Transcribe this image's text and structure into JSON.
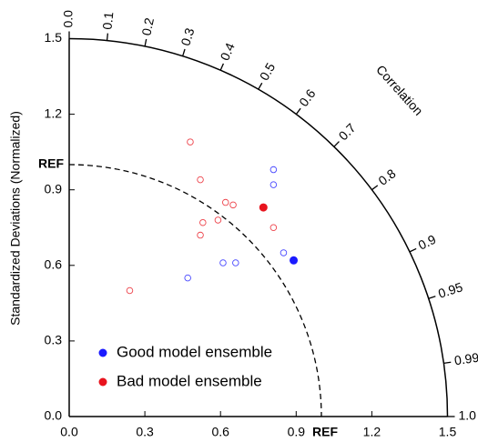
{
  "chart_data": {
    "type": "taylor",
    "y_axis_label": "Standardized Deviations (Normalized)",
    "corr_label": "Correlation",
    "xlim": [
      0,
      1.5
    ],
    "ylim": [
      0,
      1.5
    ],
    "xticks": [
      {
        "value": 0,
        "label": "0.0"
      },
      0.3,
      0.6,
      0.9,
      1.2,
      1.5
    ],
    "yticks": [
      {
        "value": 0,
        "label": "0.0"
      },
      0.3,
      0.6,
      0.9,
      1.2,
      1.5
    ],
    "ref": {
      "value": 1,
      "label": "REF"
    },
    "corr_ticks": [
      {
        "value": 0,
        "label": "0.0"
      },
      0.1,
      0.2,
      0.3,
      0.4,
      0.5,
      0.6,
      0.7,
      0.8,
      0.9,
      0.95,
      0.99,
      {
        "value": 1,
        "label": "1.0"
      }
    ],
    "series": [
      {
        "name": "Good model ensemble",
        "color": "#1a1aff",
        "ensemble": {
          "x": 0.89,
          "value": 0.62
        },
        "x": [
          0.81,
          0.81,
          0.85,
          0.61,
          0.66,
          0.47
        ],
        "values": [
          0.98,
          0.92,
          0.65,
          0.61,
          0.61,
          0.55
        ]
      },
      {
        "name": "Bad model ensemble",
        "color": "#e8141e",
        "ensemble": {
          "x": 0.77,
          "value": 0.83
        },
        "x": [
          0.48,
          0.52,
          0.62,
          0.65,
          0.59,
          0.53,
          0.52,
          0.81,
          0.24
        ],
        "values": [
          1.09,
          0.94,
          0.85,
          0.84,
          0.78,
          0.77,
          0.72,
          0.75,
          0.5
        ]
      }
    ]
  }
}
